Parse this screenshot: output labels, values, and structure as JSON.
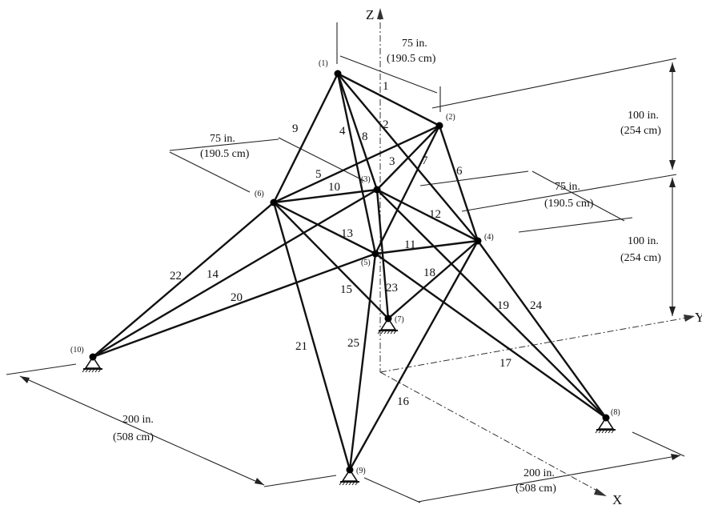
{
  "axes": {
    "z": "Z",
    "y": "Y",
    "x": "X"
  },
  "nodes": [
    {
      "id": "1",
      "label": "(1)"
    },
    {
      "id": "2",
      "label": "(2)"
    },
    {
      "id": "3",
      "label": "(3)"
    },
    {
      "id": "4",
      "label": "(4)"
    },
    {
      "id": "5",
      "label": "(5)"
    },
    {
      "id": "6",
      "label": "(6)"
    },
    {
      "id": "7",
      "label": "(7)"
    },
    {
      "id": "8",
      "label": "(8)"
    },
    {
      "id": "9",
      "label": "(9)"
    },
    {
      "id": "10",
      "label": "(10)"
    }
  ],
  "supports": [
    "7",
    "8",
    "9",
    "10"
  ],
  "members": [
    {
      "label": "1",
      "from": "1",
      "to": "2"
    },
    {
      "label": "2",
      "from": "1",
      "to": "4"
    },
    {
      "label": "3",
      "from": "2",
      "to": "3"
    },
    {
      "label": "4",
      "from": "1",
      "to": "5"
    },
    {
      "label": "5",
      "from": "2",
      "to": "6"
    },
    {
      "label": "6",
      "from": "2",
      "to": "4"
    },
    {
      "label": "7",
      "from": "2",
      "to": "5"
    },
    {
      "label": "8",
      "from": "1",
      "to": "3"
    },
    {
      "label": "9",
      "from": "1",
      "to": "6"
    },
    {
      "label": "10",
      "from": "3",
      "to": "6"
    },
    {
      "label": "11",
      "from": "4",
      "to": "5"
    },
    {
      "label": "12",
      "from": "3",
      "to": "4"
    },
    {
      "label": "13",
      "from": "5",
      "to": "6"
    },
    {
      "label": "14",
      "from": "3",
      "to": "10"
    },
    {
      "label": "15",
      "from": "6",
      "to": "7"
    },
    {
      "label": "16",
      "from": "4",
      "to": "9"
    },
    {
      "label": "17",
      "from": "5",
      "to": "8"
    },
    {
      "label": "18",
      "from": "4",
      "to": "7"
    },
    {
      "label": "19",
      "from": "3",
      "to": "8"
    },
    {
      "label": "20",
      "from": "5",
      "to": "10"
    },
    {
      "label": "21",
      "from": "6",
      "to": "9"
    },
    {
      "label": "22",
      "from": "6",
      "to": "10"
    },
    {
      "label": "23",
      "from": "3",
      "to": "7"
    },
    {
      "label": "24",
      "from": "4",
      "to": "8"
    },
    {
      "label": "25",
      "from": "5",
      "to": "9"
    }
  ],
  "dimensions": {
    "top_width": {
      "imperial": "75 in.",
      "metric": "(190.5 cm)"
    },
    "mid_left_width": {
      "imperial": "75 in.",
      "metric": "(190.5 cm)"
    },
    "mid_right_width": {
      "imperial": "75 in.",
      "metric": "(190.5 cm)"
    },
    "upper_height": {
      "imperial": "100 in.",
      "metric": "(254 cm)"
    },
    "lower_height": {
      "imperial": "100 in.",
      "metric": "(254 cm)"
    },
    "base_left": {
      "imperial": "200 in.",
      "metric": "(508 cm)"
    },
    "base_right": {
      "imperial": "200 in.",
      "metric": "(508 cm)"
    }
  }
}
